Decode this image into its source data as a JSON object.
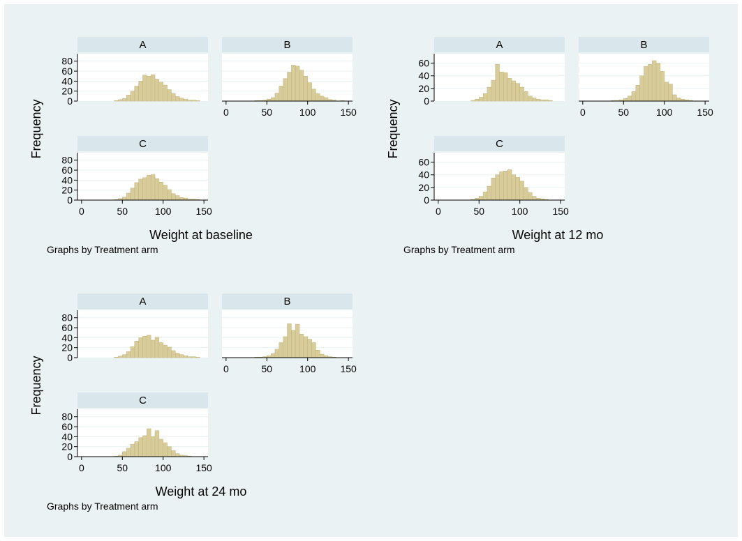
{
  "colors": {
    "background": "#eaf2f3",
    "strip": "#d9e6eb",
    "bar_fill": "#d8cc9a",
    "bar_stroke": "#bfb27a"
  },
  "chart_data": [
    {
      "type": "bar",
      "xlabel": "Weight at baseline",
      "ylabel": "Frequency",
      "note": "Graphs by Treatment arm",
      "ylim": [
        0,
        95
      ],
      "yticks": [
        0,
        20,
        40,
        60,
        80
      ],
      "xlim": [
        -5,
        155
      ],
      "xticks": [
        0,
        50,
        100,
        150
      ],
      "bin_width": 5,
      "grid": true,
      "panels": [
        {
          "name": "A",
          "bins": [
            [
              40,
              1
            ],
            [
              45,
              3
            ],
            [
              50,
              5
            ],
            [
              55,
              12
            ],
            [
              60,
              20
            ],
            [
              65,
              30
            ],
            [
              70,
              40
            ],
            [
              75,
              52
            ],
            [
              80,
              50
            ],
            [
              85,
              53
            ],
            [
              90,
              44
            ],
            [
              95,
              38
            ],
            [
              100,
              32
            ],
            [
              105,
              23
            ],
            [
              110,
              15
            ],
            [
              115,
              9
            ],
            [
              120,
              6
            ],
            [
              125,
              4
            ],
            [
              130,
              2
            ],
            [
              135,
              2
            ],
            [
              140,
              1
            ]
          ]
        },
        {
          "name": "B",
          "bins": [
            [
              35,
              1
            ],
            [
              40,
              1
            ],
            [
              45,
              2
            ],
            [
              50,
              4
            ],
            [
              55,
              7
            ],
            [
              60,
              16
            ],
            [
              65,
              30
            ],
            [
              70,
              45
            ],
            [
              75,
              58
            ],
            [
              80,
              72
            ],
            [
              85,
              70
            ],
            [
              90,
              62
            ],
            [
              95,
              50
            ],
            [
              100,
              37
            ],
            [
              105,
              24
            ],
            [
              110,
              15
            ],
            [
              115,
              10
            ],
            [
              120,
              7
            ],
            [
              125,
              3
            ],
            [
              130,
              2
            ],
            [
              140,
              1
            ]
          ]
        },
        {
          "name": "C",
          "bins": [
            [
              40,
              1
            ],
            [
              45,
              3
            ],
            [
              50,
              6
            ],
            [
              55,
              14
            ],
            [
              60,
              24
            ],
            [
              65,
              35
            ],
            [
              70,
              42
            ],
            [
              75,
              45
            ],
            [
              80,
              50
            ],
            [
              85,
              51
            ],
            [
              90,
              43
            ],
            [
              95,
              36
            ],
            [
              100,
              30
            ],
            [
              105,
              21
            ],
            [
              110,
              13
            ],
            [
              115,
              9
            ],
            [
              120,
              5
            ],
            [
              125,
              4
            ],
            [
              130,
              2
            ],
            [
              135,
              2
            ],
            [
              140,
              1
            ]
          ]
        }
      ]
    },
    {
      "type": "bar",
      "xlabel": "Weight at 12 mo",
      "ylabel": "Frequency",
      "note": "Graphs by Treatment arm",
      "ylim": [
        0,
        75
      ],
      "yticks": [
        0,
        20,
        40,
        60
      ],
      "xlim": [
        -5,
        155
      ],
      "xticks": [
        0,
        50,
        100,
        150
      ],
      "bin_width": 5,
      "grid": true,
      "panels": [
        {
          "name": "A",
          "bins": [
            [
              40,
              1
            ],
            [
              45,
              3
            ],
            [
              50,
              6
            ],
            [
              55,
              12
            ],
            [
              60,
              22
            ],
            [
              65,
              33
            ],
            [
              70,
              58
            ],
            [
              75,
              46
            ],
            [
              80,
              45
            ],
            [
              85,
              36
            ],
            [
              90,
              32
            ],
            [
              95,
              28
            ],
            [
              100,
              22
            ],
            [
              105,
              15
            ],
            [
              110,
              8
            ],
            [
              115,
              5
            ],
            [
              120,
              3
            ],
            [
              125,
              2
            ],
            [
              130,
              2
            ],
            [
              135,
              1
            ]
          ]
        },
        {
          "name": "B",
          "bins": [
            [
              35,
              1
            ],
            [
              40,
              1
            ],
            [
              45,
              2
            ],
            [
              50,
              4
            ],
            [
              55,
              8
            ],
            [
              60,
              15
            ],
            [
              65,
              25
            ],
            [
              70,
              40
            ],
            [
              75,
              55
            ],
            [
              80,
              58
            ],
            [
              85,
              64
            ],
            [
              90,
              60
            ],
            [
              95,
              47
            ],
            [
              100,
              30
            ],
            [
              105,
              27
            ],
            [
              110,
              10
            ],
            [
              115,
              5
            ],
            [
              120,
              3
            ],
            [
              125,
              2
            ],
            [
              130,
              1
            ]
          ]
        },
        {
          "name": "C",
          "bins": [
            [
              40,
              1
            ],
            [
              45,
              3
            ],
            [
              50,
              6
            ],
            [
              55,
              13
            ],
            [
              60,
              22
            ],
            [
              65,
              35
            ],
            [
              70,
              40
            ],
            [
              75,
              45
            ],
            [
              80,
              46
            ],
            [
              85,
              48
            ],
            [
              90,
              40
            ],
            [
              95,
              36
            ],
            [
              100,
              30
            ],
            [
              105,
              20
            ],
            [
              110,
              12
            ],
            [
              115,
              6
            ],
            [
              120,
              3
            ],
            [
              125,
              2
            ],
            [
              130,
              1
            ]
          ]
        }
      ]
    },
    {
      "type": "bar",
      "xlabel": "Weight at 24 mo",
      "ylabel": "Frequency",
      "note": "Graphs by Treatment arm",
      "ylim": [
        0,
        95
      ],
      "yticks": [
        0,
        20,
        40,
        60,
        80
      ],
      "xlim": [
        -5,
        155
      ],
      "xticks": [
        0,
        50,
        100,
        150
      ],
      "bin_width": 5,
      "grid": true,
      "panels": [
        {
          "name": "A",
          "bins": [
            [
              40,
              1
            ],
            [
              45,
              3
            ],
            [
              50,
              6
            ],
            [
              55,
              12
            ],
            [
              60,
              22
            ],
            [
              65,
              33
            ],
            [
              70,
              40
            ],
            [
              75,
              43
            ],
            [
              80,
              45
            ],
            [
              85,
              35
            ],
            [
              90,
              41
            ],
            [
              95,
              30
            ],
            [
              100,
              25
            ],
            [
              105,
              21
            ],
            [
              110,
              14
            ],
            [
              115,
              9
            ],
            [
              120,
              6
            ],
            [
              125,
              4
            ],
            [
              130,
              2
            ],
            [
              135,
              2
            ],
            [
              140,
              1
            ]
          ]
        },
        {
          "name": "B",
          "bins": [
            [
              35,
              1
            ],
            [
              40,
              1
            ],
            [
              45,
              2
            ],
            [
              50,
              4
            ],
            [
              55,
              8
            ],
            [
              60,
              17
            ],
            [
              65,
              30
            ],
            [
              70,
              42
            ],
            [
              75,
              68
            ],
            [
              80,
              55
            ],
            [
              85,
              67
            ],
            [
              90,
              47
            ],
            [
              95,
              42
            ],
            [
              100,
              37
            ],
            [
              105,
              30
            ],
            [
              110,
              15
            ],
            [
              115,
              7
            ],
            [
              120,
              4
            ],
            [
              125,
              2
            ],
            [
              130,
              1
            ]
          ]
        },
        {
          "name": "C",
          "bins": [
            [
              40,
              1
            ],
            [
              45,
              3
            ],
            [
              50,
              10
            ],
            [
              55,
              17
            ],
            [
              60,
              25
            ],
            [
              65,
              30
            ],
            [
              70,
              38
            ],
            [
              75,
              42
            ],
            [
              80,
              56
            ],
            [
              85,
              40
            ],
            [
              90,
              52
            ],
            [
              95,
              35
            ],
            [
              100,
              28
            ],
            [
              105,
              20
            ],
            [
              110,
              12
            ],
            [
              115,
              6
            ],
            [
              120,
              3
            ],
            [
              125,
              2
            ],
            [
              130,
              1
            ]
          ]
        }
      ]
    }
  ]
}
